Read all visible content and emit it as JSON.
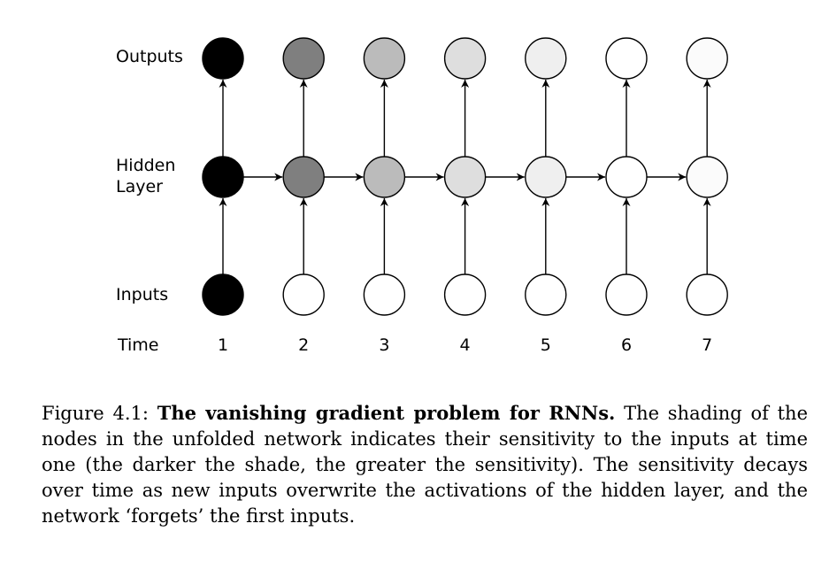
{
  "figure": {
    "row_labels": {
      "outputs": "Outputs",
      "hidden_line1": "Hidden",
      "hidden_line2": "Layer",
      "inputs": "Inputs",
      "time": "Time"
    },
    "time_steps": [
      "1",
      "2",
      "3",
      "4",
      "5",
      "6",
      "7"
    ],
    "shades": {
      "outputs": [
        "#000000",
        "#7f7f7f",
        "#bbbbbb",
        "#dedede",
        "#efefef",
        "#ffffff",
        "#fbfbfb"
      ],
      "hidden": [
        "#000000",
        "#7f7f7f",
        "#bbbbbb",
        "#dedede",
        "#efefef",
        "#ffffff",
        "#fbfbfb"
      ],
      "inputs": [
        "#000000",
        "#ffffff",
        "#ffffff",
        "#ffffff",
        "#ffffff",
        "#ffffff",
        "#ffffff"
      ]
    }
  },
  "caption": {
    "prefix": "Figure 4.1: ",
    "title": "The vanishing gradient problem for RNNs.",
    "body": " The shading of the nodes in the unfolded network indicates their sensitivity to the inputs at time one (the darker the shade, the greater the sensitivity).  The sensitivity decays over time as new inputs overwrite the activations of the hidden layer, and the network ‘forgets’ the first inputs."
  }
}
